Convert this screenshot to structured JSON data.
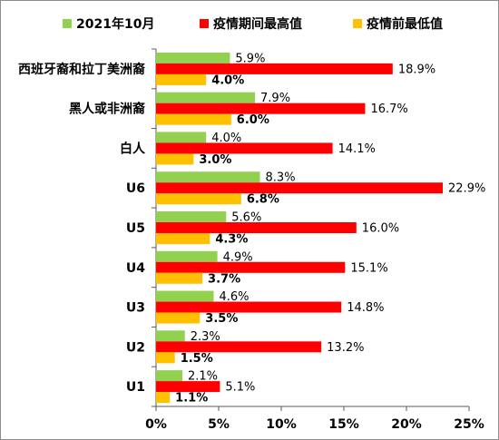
{
  "chart_data": {
    "type": "bar",
    "orientation": "horizontal",
    "categories": [
      "西班牙裔和拉丁美洲裔",
      "黑人或非洲裔",
      "白人",
      "U6",
      "U5",
      "U4",
      "U3",
      "U2",
      "U1"
    ],
    "series": [
      {
        "name": "2021年10月",
        "color": "#92d050",
        "values": [
          5.9,
          7.9,
          4.0,
          8.3,
          5.6,
          4.9,
          4.6,
          2.3,
          2.1
        ],
        "labels": [
          "5.9%",
          "7.9%",
          "4.0%",
          "8.3%",
          "5.6%",
          "4.9%",
          "4.6%",
          "2.3%",
          "2.1%"
        ],
        "label_bold": false
      },
      {
        "name": "疫情期间最高值",
        "color": "#ff0000",
        "values": [
          18.9,
          16.7,
          14.1,
          22.9,
          16.0,
          15.1,
          14.8,
          13.2,
          5.1
        ],
        "labels": [
          "18.9%",
          "16.7%",
          "14.1%",
          "22.9%",
          "16.0%",
          "15.1%",
          "14.8%",
          "13.2%",
          "5.1%"
        ],
        "label_bold": false
      },
      {
        "name": "疫情前最低值",
        "color": "#ffc000",
        "values": [
          4.0,
          6.0,
          3.0,
          6.8,
          4.3,
          3.7,
          3.5,
          1.5,
          1.1
        ],
        "labels": [
          "4.0%",
          "6.0%",
          "3.0%",
          "6.8%",
          "4.3%",
          "3.7%",
          "3.5%",
          "1.5%",
          "1.1%"
        ],
        "label_bold": true
      }
    ],
    "x_ticks": [
      "0%",
      "5%",
      "10%",
      "15%",
      "20%",
      "25%"
    ],
    "xlim": [
      0,
      25
    ],
    "title": "",
    "xlabel": "",
    "ylabel": "",
    "grid": false,
    "legend_position": "top"
  }
}
